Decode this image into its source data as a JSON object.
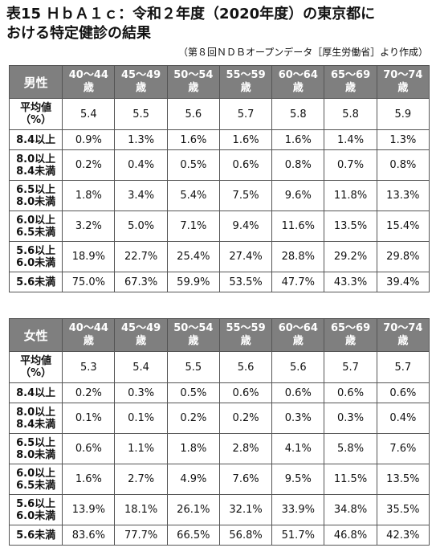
{
  "title": {
    "label": "表15",
    "line1": "ＨｂＡ１ｃ：令和２年度（2020年度）の東京都に",
    "line2": "おける特定健診の結果"
  },
  "source": "（第８回ＮＤＢオープンデータ［厚生労働省］より作成）",
  "age_groups": [
    {
      "range": "40～44",
      "suffix": "歳"
    },
    {
      "range": "45～49",
      "suffix": "歳"
    },
    {
      "range": "50～54",
      "suffix": "歳"
    },
    {
      "range": "55～59",
      "suffix": "歳"
    },
    {
      "range": "60～64",
      "suffix": "歳"
    },
    {
      "range": "65～69",
      "suffix": "歳"
    },
    {
      "range": "70～74",
      "suffix": "歳"
    }
  ],
  "row_labels": {
    "avg": [
      "平均値",
      "（%）"
    ],
    "r1": [
      "8.4以上"
    ],
    "r2": [
      "8.0以上",
      "8.4未満"
    ],
    "r3": [
      "6.5以上",
      "8.0未満"
    ],
    "r4": [
      "6.0以上",
      "6.5未満"
    ],
    "r5": [
      "5.6以上",
      "6.0未満"
    ],
    "r6": [
      "5.6未満"
    ]
  },
  "male": {
    "label": "男性",
    "avg": [
      "5.4",
      "5.5",
      "5.6",
      "5.7",
      "5.8",
      "5.8",
      "5.9"
    ],
    "r1": [
      "0.9%",
      "1.3%",
      "1.6%",
      "1.6%",
      "1.6%",
      "1.4%",
      "1.3%"
    ],
    "r2": [
      "0.2%",
      "0.4%",
      "0.5%",
      "0.6%",
      "0.8%",
      "0.7%",
      "0.8%"
    ],
    "r3": [
      "1.8%",
      "3.4%",
      "5.4%",
      "7.5%",
      "9.6%",
      "11.8%",
      "13.3%"
    ],
    "r4": [
      "3.2%",
      "5.0%",
      "7.1%",
      "9.4%",
      "11.6%",
      "13.5%",
      "15.4%"
    ],
    "r5": [
      "18.9%",
      "22.7%",
      "25.4%",
      "27.4%",
      "28.8%",
      "29.2%",
      "29.8%"
    ],
    "r6": [
      "75.0%",
      "67.3%",
      "59.9%",
      "53.5%",
      "47.7%",
      "43.3%",
      "39.4%"
    ]
  },
  "female": {
    "label": "女性",
    "avg": [
      "5.3",
      "5.4",
      "5.5",
      "5.6",
      "5.6",
      "5.7",
      "5.7"
    ],
    "r1": [
      "0.2%",
      "0.3%",
      "0.5%",
      "0.6%",
      "0.6%",
      "0.6%",
      "0.6%"
    ],
    "r2": [
      "0.1%",
      "0.1%",
      "0.2%",
      "0.2%",
      "0.3%",
      "0.3%",
      "0.4%"
    ],
    "r3": [
      "0.6%",
      "1.1%",
      "1.8%",
      "2.8%",
      "4.1%",
      "5.8%",
      "7.6%"
    ],
    "r4": [
      "1.6%",
      "2.7%",
      "4.9%",
      "7.6%",
      "9.5%",
      "11.5%",
      "13.5%"
    ],
    "r5": [
      "13.9%",
      "18.1%",
      "26.1%",
      "32.1%",
      "33.9%",
      "34.8%",
      "35.5%"
    ],
    "r6": [
      "83.6%",
      "77.7%",
      "66.5%",
      "56.8%",
      "51.7%",
      "46.8%",
      "42.3%"
    ]
  }
}
